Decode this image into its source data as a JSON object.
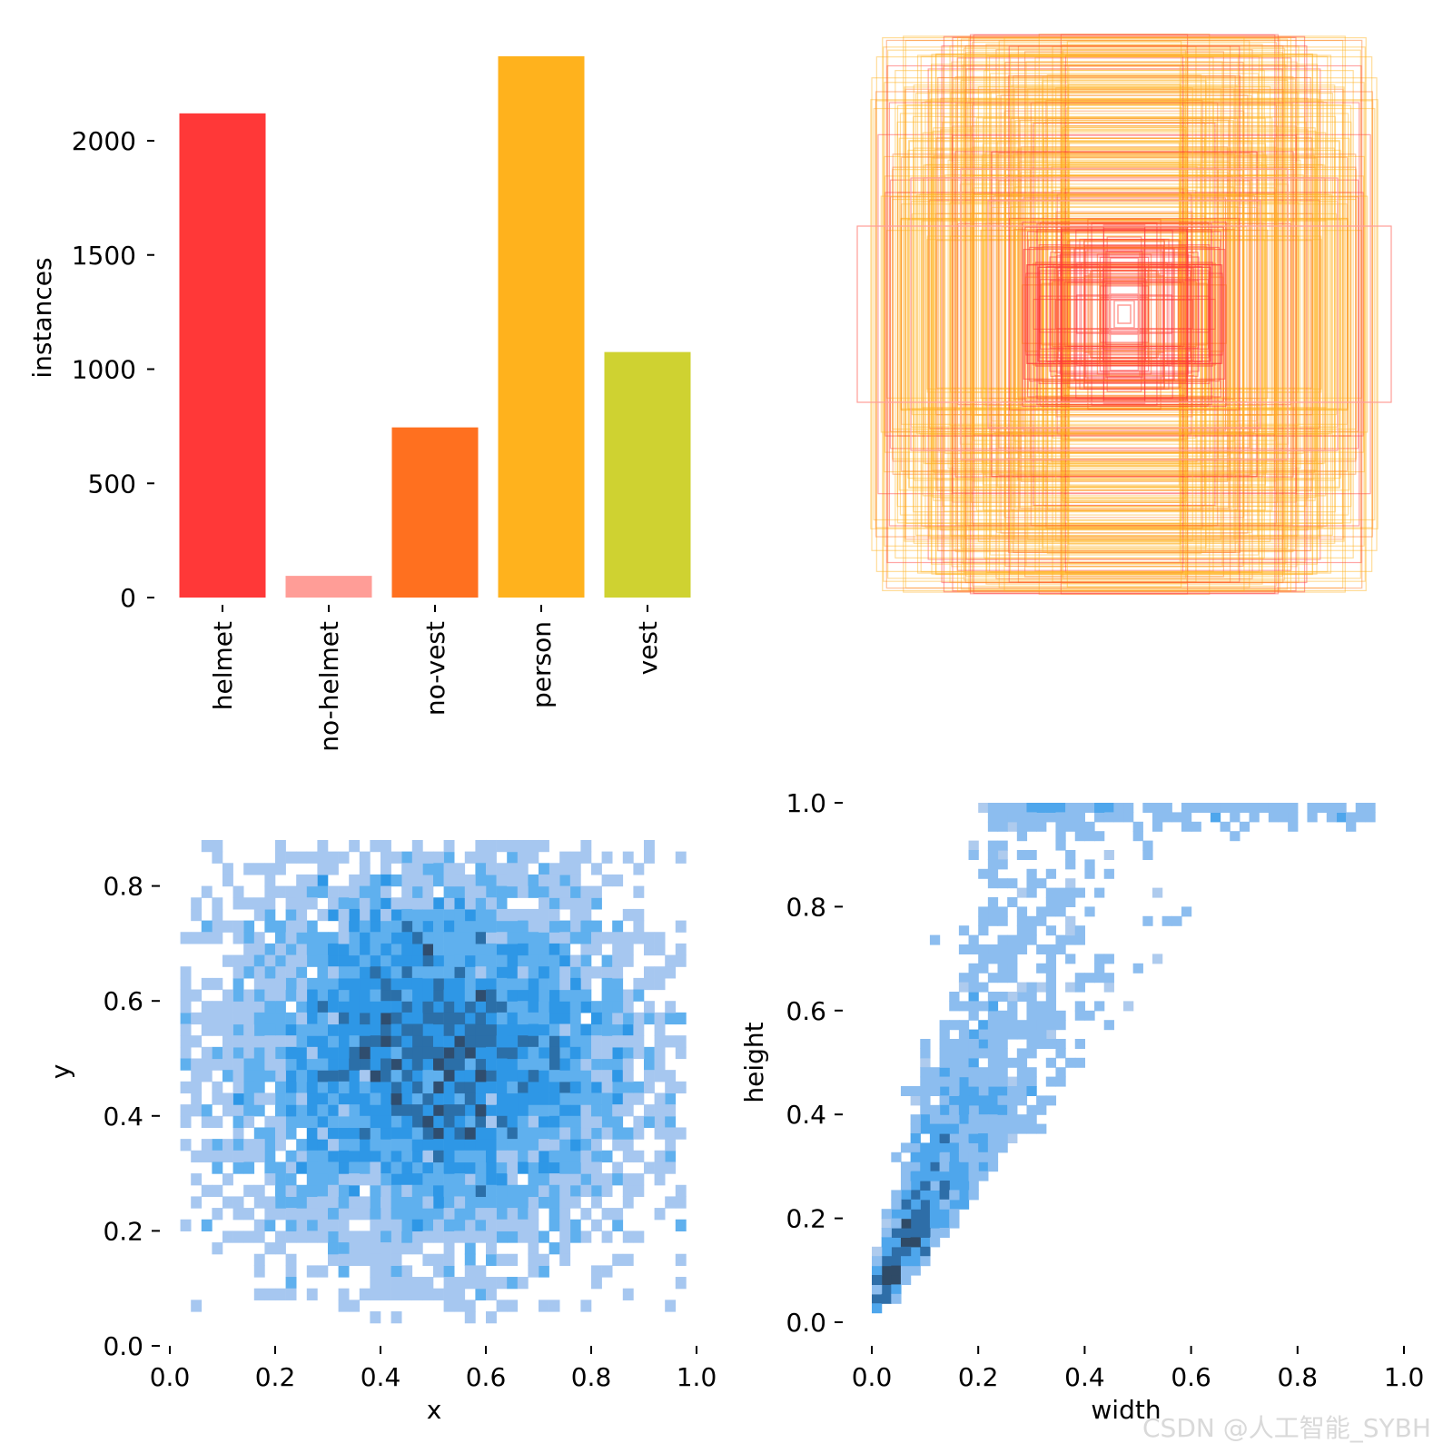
{
  "chart_data": [
    {
      "type": "bar",
      "categories": [
        "helmet",
        "no-helmet",
        "no-vest",
        "person",
        "vest"
      ],
      "values": [
        2120,
        95,
        745,
        2370,
        1075
      ],
      "colors": [
        "#ff3838",
        "#ff9d97",
        "#ff701f",
        "#ffb21d",
        "#cfd231"
      ],
      "xlabel": "",
      "ylabel": "instances",
      "yticks": [
        "0",
        "500",
        "1000",
        "1500",
        "2000"
      ],
      "ylim": [
        0,
        2400
      ],
      "grid": false
    },
    {
      "type": "scatter",
      "description_kind": "bounding-box overlay",
      "box_colors": [
        "#ff3838",
        "#ff9d97",
        "#ff701f",
        "#ffb21d",
        "#cfd231"
      ],
      "axes_visible": false
    },
    {
      "type": "heatmap",
      "xlabel": "x",
      "ylabel": "y",
      "xlim": [
        0.0,
        1.0
      ],
      "ylim": [
        0.0,
        0.9
      ],
      "xticks": [
        "0.0",
        "0.2",
        "0.4",
        "0.6",
        "0.8",
        "1.0"
      ],
      "yticks": [
        "0.0",
        "0.2",
        "0.4",
        "0.6",
        "0.8"
      ],
      "data_extent": {
        "x": [
          0.02,
          0.98
        ],
        "y": [
          0.05,
          0.88
        ]
      },
      "density_center": {
        "x": 0.5,
        "y": 0.55
      },
      "cmap": [
        "#a6c7f0",
        "#5fb0ee",
        "#2e97e6",
        "#2b6fa8",
        "#2f4d6e"
      ]
    },
    {
      "type": "heatmap",
      "xlabel": "width",
      "ylabel": "height",
      "xlim": [
        0.0,
        1.0
      ],
      "ylim": [
        0.0,
        1.0
      ],
      "xticks": [
        "0.0",
        "0.2",
        "0.4",
        "0.6",
        "0.8",
        "1.0"
      ],
      "yticks": [
        "0.0",
        "0.2",
        "0.4",
        "0.6",
        "0.8",
        "1.0"
      ],
      "density_peak": {
        "x": 0.05,
        "y": 0.05
      },
      "cmap": [
        "#aecbee",
        "#8cbdef",
        "#4ea6ec",
        "#2e6ea8",
        "#2f4a66"
      ]
    }
  ],
  "watermark": "CSDN @人工智能_SYBH"
}
